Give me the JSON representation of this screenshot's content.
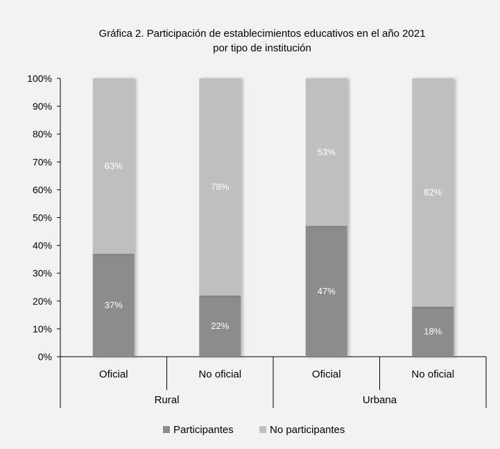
{
  "chart_data": {
    "type": "bar",
    "stacked": true,
    "percent": true,
    "title": "Gráfica 2. Participación de establecimientos educativos en el año 2021",
    "subtitle": "por tipo de institución",
    "groups": [
      {
        "name": "Rural",
        "categories": [
          "Oficial",
          "No oficial"
        ]
      },
      {
        "name": "Urbana",
        "categories": [
          "Oficial",
          "No oficial"
        ]
      }
    ],
    "categories": [
      "Oficial",
      "No oficial",
      "Oficial",
      "No oficial"
    ],
    "series": [
      {
        "name": "Participantes",
        "values": [
          37,
          22,
          47,
          18
        ],
        "labels": [
          "37%",
          "22%",
          "47%",
          "18%"
        ],
        "color": "#8c8c8c"
      },
      {
        "name": "No participantes",
        "values": [
          63,
          78,
          53,
          82
        ],
        "labels": [
          "63%",
          "78%",
          "53%",
          "82%"
        ],
        "color": "#bfbfbf"
      }
    ],
    "yticks": [
      "0%",
      "10%",
      "20%",
      "30%",
      "40%",
      "50%",
      "60%",
      "70%",
      "80%",
      "90%",
      "100%"
    ],
    "ylim": [
      0,
      100
    ],
    "grid": false,
    "legend_position": "bottom"
  }
}
